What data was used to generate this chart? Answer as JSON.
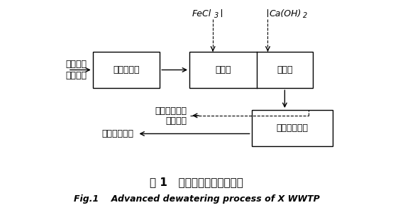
{
  "title_cn": "图 1   某厂深度脱水工艺流程",
  "title_en": "Fig.1    Advanced dewatering process of X WWTP",
  "bg_color": "#ffffff",
  "input_label1": "浓缩污泥",
  "input_label2": "脱水污泥",
  "unload_label": "卸料稀释池",
  "adjust_label": "调理池",
  "storage_label": "储泥池",
  "filter_label": "隔膜压滤系统",
  "filtrate_label1": "滤液排至厂区",
  "filtrate_label2": "污水管网",
  "mudcake_label": "泥饼外运填埋",
  "fecl3_main": "FeCl",
  "fecl3_sub": "3",
  "caoh2_main": "Ca(OH)",
  "caoh2_sub": "2"
}
